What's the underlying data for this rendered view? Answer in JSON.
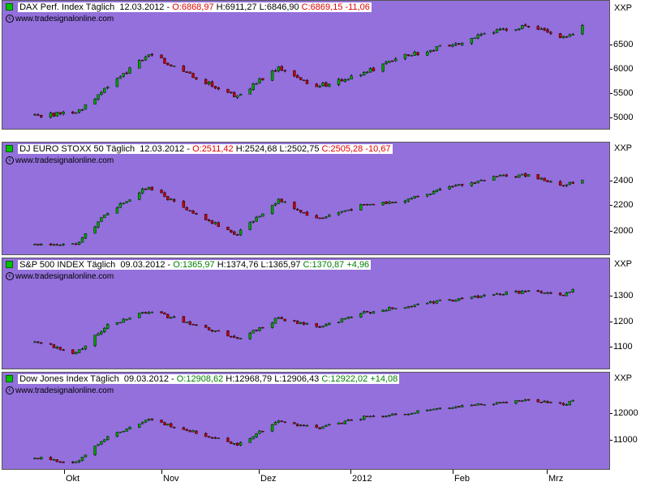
{
  "panels": [
    {
      "id": "dax",
      "name": "DAX Perf. Index Täglich",
      "date": "12.03.2012",
      "open": "O:6868,97",
      "high": "H:6911,27",
      "low": "L:6846,90",
      "close": "C:6869,15",
      "change": "-11,06",
      "change_sign": "neg",
      "source": "www.tradesignalonline.com",
      "unit": "XXP",
      "ticks": [
        "6500",
        "6000",
        "5500",
        "5000"
      ]
    },
    {
      "id": "stoxx",
      "name": "DJ EURO STOXX 50 Täglich",
      "date": "12.03.2012",
      "open": "O:2511,42",
      "high": "H:2524,68",
      "low": "L:2502,75",
      "close": "C:2505,28",
      "change": "-10,67",
      "change_sign": "neg",
      "source": "www.tradesignalonline.com",
      "unit": "XXP",
      "ticks": [
        "2400",
        "2200",
        "2000"
      ]
    },
    {
      "id": "sp500",
      "name": "S&P 500 INDEX Täglich",
      "date": "09.03.2012",
      "open": "O:1365,97",
      "high": "H:1374,76",
      "low": "L:1365,97",
      "close": "C:1370,87",
      "change": "+4,96",
      "change_sign": "pos",
      "source": "www.tradesignalonline.com",
      "unit": "XXP",
      "ticks": [
        "1300",
        "1200",
        "1100"
      ]
    },
    {
      "id": "dow",
      "name": "Dow Jones Index Täglich",
      "date": "09.03.2012",
      "open": "O:12908,62",
      "high": "H:12968,79",
      "low": "L:12906,43",
      "close": "C:12922,02",
      "change": "+14,08",
      "change_sign": "pos",
      "source": "www.tradesignalonline.com",
      "unit": "XXP",
      "ticks": [
        "12000",
        "11000"
      ]
    }
  ],
  "xaxis": [
    "Okt",
    "Nov",
    "Dez",
    "2012",
    "Feb",
    "Mrz"
  ],
  "colors": {
    "background": "#9370db",
    "up": "#00a000",
    "down": "#c00000",
    "neutral": "#000000"
  },
  "chart_data": [
    {
      "type": "candlestick",
      "title": "DAX Perf. Index Täglich",
      "ylim": [
        4950,
        7000
      ],
      "x_range": [
        "2011-09-21",
        "2012-03-12"
      ],
      "approx_close_path": [
        [
          "2011-09-22",
          5150
        ],
        [
          "2011-10-04",
          5200
        ],
        [
          "2011-10-14",
          5700
        ],
        [
          "2011-10-27",
          6350
        ],
        [
          "2011-11-09",
          5950
        ],
        [
          "2011-11-24",
          5500
        ],
        [
          "2011-12-07",
          6100
        ],
        [
          "2011-12-19",
          5700
        ],
        [
          "2012-01-02",
          5950
        ],
        [
          "2012-01-16",
          6300
        ],
        [
          "2012-02-01",
          6550
        ],
        [
          "2012-02-13",
          6800
        ],
        [
          "2012-02-24",
          6880
        ],
        [
          "2012-03-06",
          6650
        ],
        [
          "2012-03-12",
          6869
        ]
      ]
    },
    {
      "type": "candlestick",
      "title": "DJ EURO STOXX 50 Täglich",
      "ylim": [
        1950,
        2600
      ],
      "x_range": [
        "2011-09-21",
        "2012-03-12"
      ],
      "approx_close_path": [
        [
          "2011-09-22",
          2000
        ],
        [
          "2011-10-04",
          2000
        ],
        [
          "2011-10-14",
          2250
        ],
        [
          "2011-10-27",
          2450
        ],
        [
          "2011-11-09",
          2250
        ],
        [
          "2011-11-24",
          2080
        ],
        [
          "2011-12-07",
          2350
        ],
        [
          "2011-12-19",
          2200
        ],
        [
          "2012-01-02",
          2300
        ],
        [
          "2012-01-16",
          2350
        ],
        [
          "2012-02-01",
          2450
        ],
        [
          "2012-02-13",
          2520
        ],
        [
          "2012-02-24",
          2540
        ],
        [
          "2012-03-06",
          2450
        ],
        [
          "2012-03-12",
          2505
        ]
      ]
    },
    {
      "type": "candlestick",
      "title": "S&P 500 INDEX Täglich",
      "ylim": [
        1050,
        1400
      ],
      "x_range": [
        "2011-09-21",
        "2012-03-09"
      ],
      "approx_close_path": [
        [
          "2011-09-22",
          1150
        ],
        [
          "2011-10-04",
          1100
        ],
        [
          "2011-10-14",
          1220
        ],
        [
          "2011-10-27",
          1280
        ],
        [
          "2011-11-09",
          1230
        ],
        [
          "2011-11-24",
          1160
        ],
        [
          "2011-12-07",
          1250
        ],
        [
          "2011-12-19",
          1210
        ],
        [
          "2012-01-02",
          1270
        ],
        [
          "2012-01-16",
          1300
        ],
        [
          "2012-02-01",
          1330
        ],
        [
          "2012-02-13",
          1350
        ],
        [
          "2012-02-24",
          1365
        ],
        [
          "2012-03-06",
          1345
        ],
        [
          "2012-03-09",
          1371
        ]
      ]
    },
    {
      "type": "candlestick",
      "title": "Dow Jones Index Täglich",
      "ylim": [
        10500,
        13200
      ],
      "x_range": [
        "2011-09-21",
        "2012-03-09"
      ],
      "approx_close_path": [
        [
          "2011-09-22",
          10800
        ],
        [
          "2011-10-04",
          10600
        ],
        [
          "2011-10-14",
          11600
        ],
        [
          "2011-10-27",
          12200
        ],
        [
          "2011-11-09",
          11800
        ],
        [
          "2011-11-24",
          11300
        ],
        [
          "2011-12-07",
          12150
        ],
        [
          "2011-12-19",
          11900
        ],
        [
          "2012-01-02",
          12300
        ],
        [
          "2012-01-16",
          12450
        ],
        [
          "2012-02-01",
          12700
        ],
        [
          "2012-02-13",
          12850
        ],
        [
          "2012-02-24",
          12950
        ],
        [
          "2012-03-06",
          12800
        ],
        [
          "2012-03-09",
          12922
        ]
      ]
    }
  ]
}
